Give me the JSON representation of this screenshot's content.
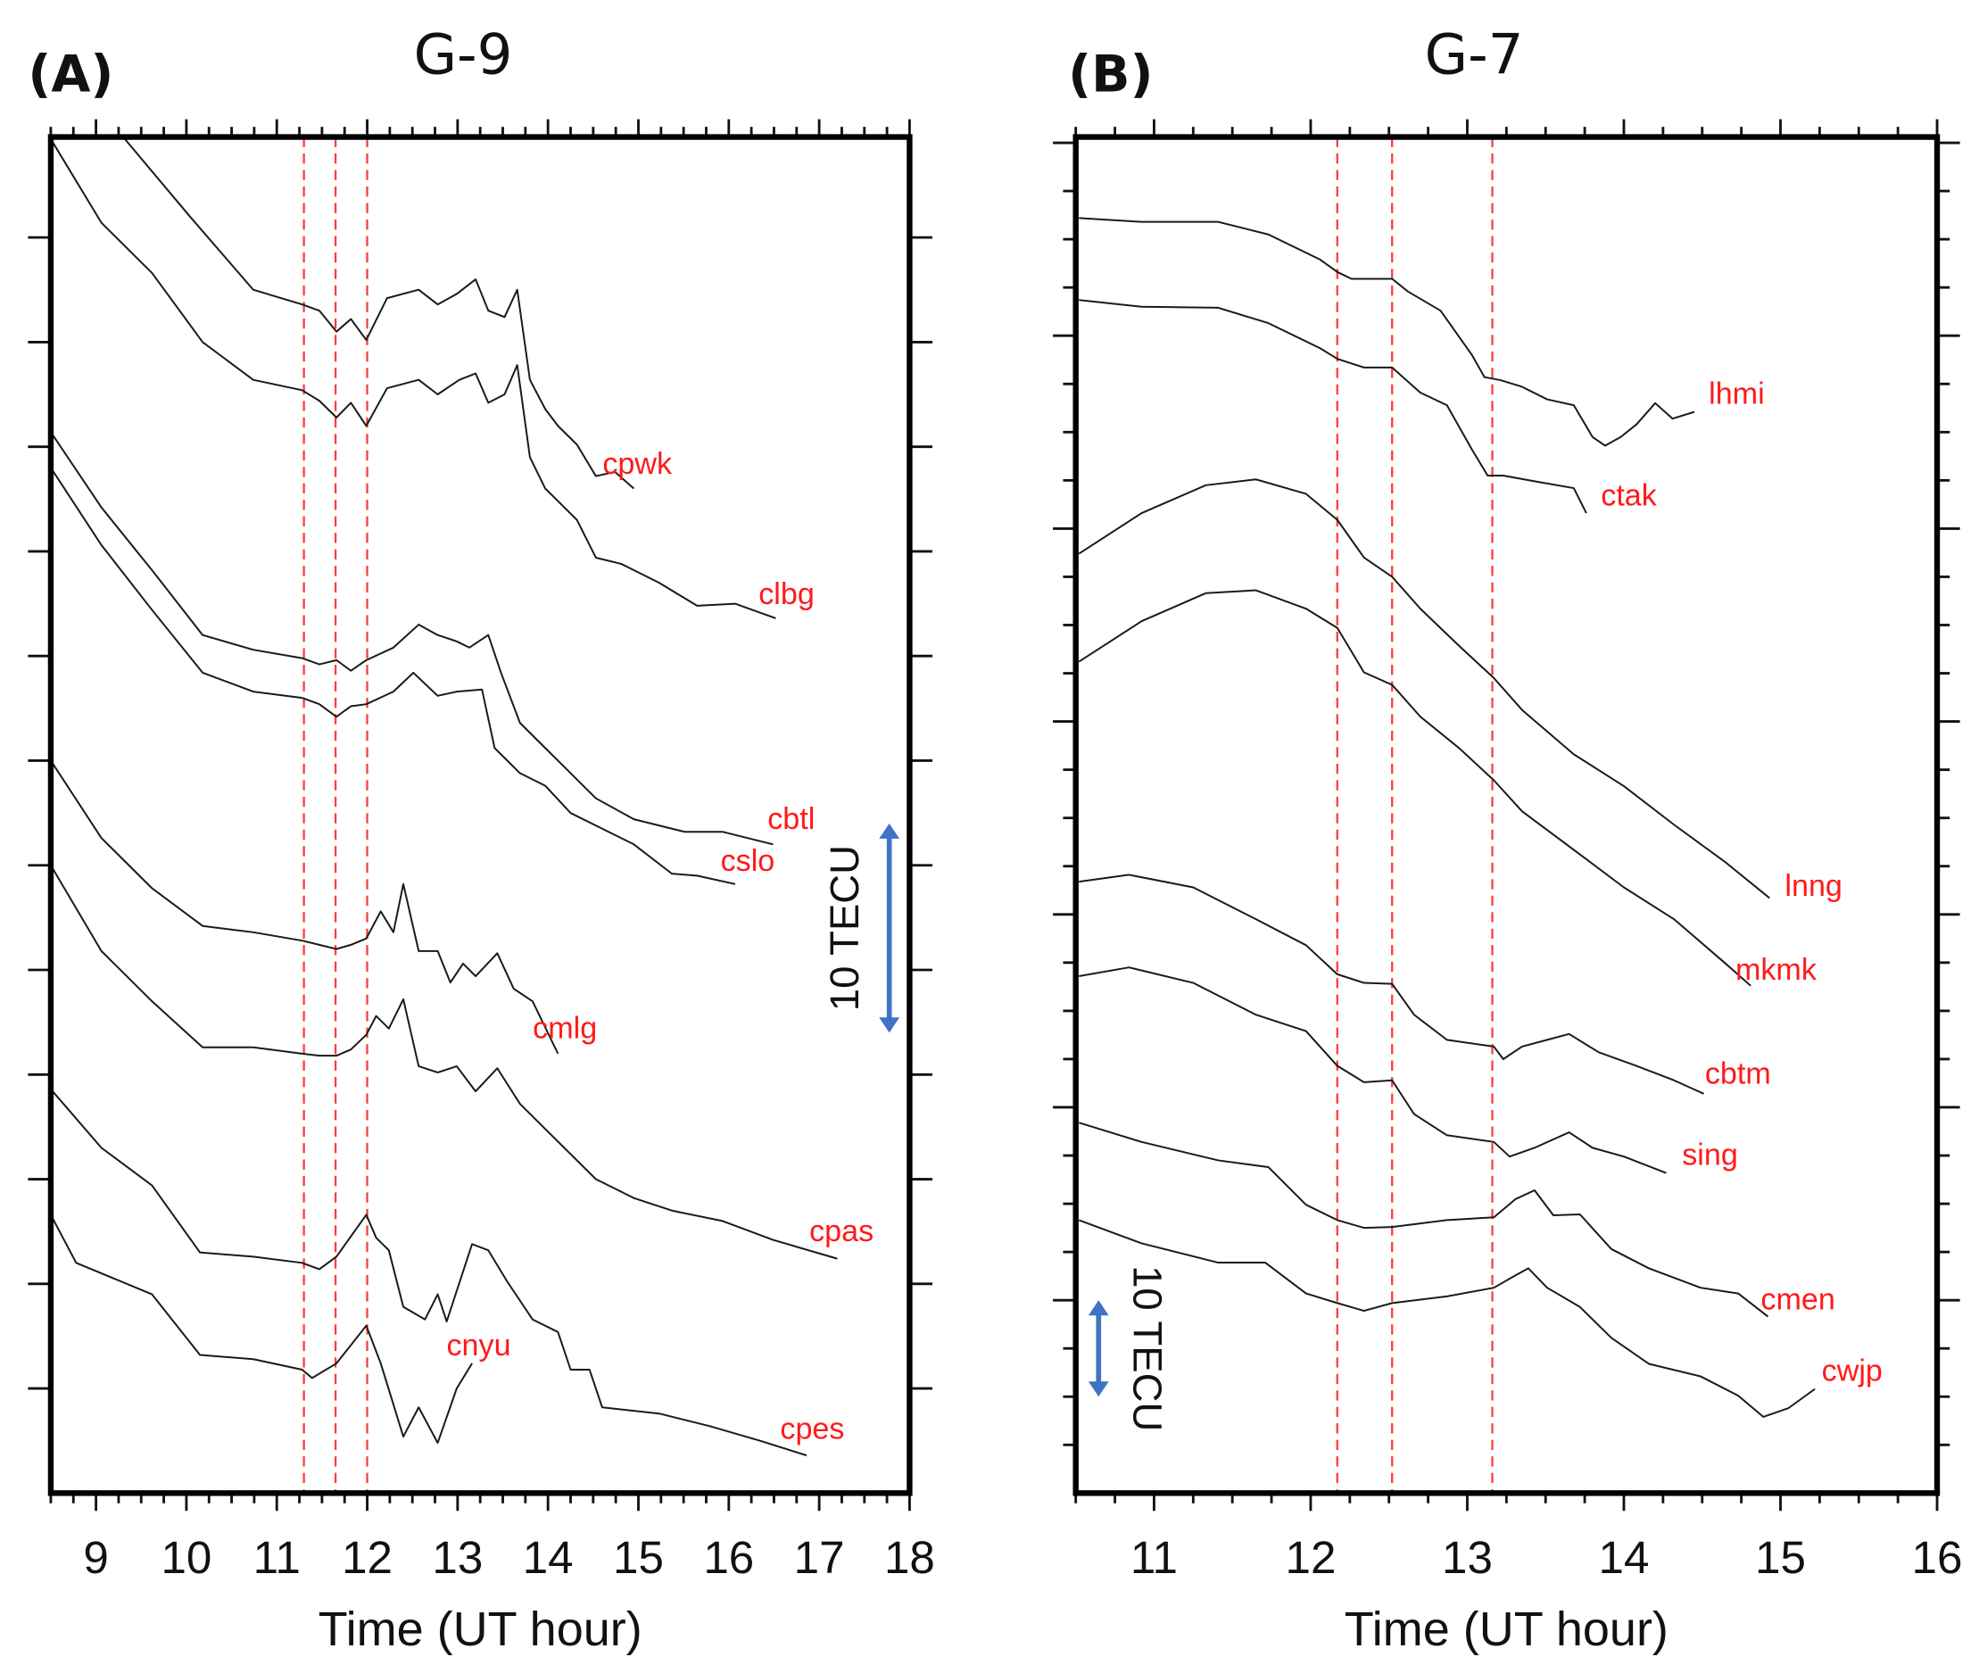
{
  "chart_data": [
    {
      "type": "line",
      "panel_label": "(A)",
      "title": "G-9",
      "xlabel": "Time (UT hour)",
      "ylabel": "",
      "xlim": [
        8.5,
        18
      ],
      "ylim": [
        0,
        64.8
      ],
      "xticks": [
        "9",
        "10",
        "11",
        "12",
        "13",
        "14",
        "15",
        "16",
        "17",
        "18"
      ],
      "xtick_values": [
        9,
        10,
        11,
        12,
        13,
        14,
        15,
        16,
        17,
        18
      ],
      "x_minor_step": 0.25,
      "y_tick_step": 5,
      "y_major_step": 5,
      "event_lines_x": [
        11.3,
        11.65,
        12.0
      ],
      "scale_bar": {
        "label": "10 TECU",
        "value": 10,
        "center": 27
      },
      "colors": {
        "series": "#1a1a1a",
        "labels": "#ff1a1a",
        "event_lines": "#ff3b3b",
        "scale_bar": "#3f73c4"
      },
      "series": [
        {
          "name": "cpwk",
          "x": [
            9.3,
            10.04,
            10.74,
            11.28,
            11.47,
            11.66,
            11.82,
            11.99,
            12.22,
            12.57,
            12.78,
            12.99,
            13.2,
            13.34,
            13.52,
            13.66,
            13.8,
            13.97,
            14.11,
            14.32,
            14.53,
            14.74,
            14.95
          ],
          "y": [
            64.8,
            61.0,
            57.5,
            56.8,
            56.5,
            55.5,
            56.1,
            55.1,
            57.1,
            57.5,
            56.8,
            57.3,
            58.0,
            56.5,
            56.2,
            57.5,
            53.2,
            51.8,
            51.0,
            50.1,
            48.6,
            48.8,
            48.0
          ]
        },
        {
          "name": "clbg",
          "x": [
            8.5,
            9.06,
            9.62,
            10.18,
            10.74,
            11.28,
            11.47,
            11.66,
            11.82,
            11.99,
            12.22,
            12.57,
            12.78,
            13.02,
            13.2,
            13.34,
            13.52,
            13.66,
            13.8,
            13.97,
            14.11,
            14.32,
            14.53,
            14.81,
            15.23,
            15.65,
            16.07,
            16.52
          ],
          "y": [
            64.7,
            60.7,
            58.3,
            55.0,
            53.2,
            52.7,
            52.2,
            51.4,
            52.1,
            51.0,
            52.8,
            53.2,
            52.5,
            53.2,
            53.5,
            52.1,
            52.5,
            53.9,
            49.5,
            48.0,
            47.4,
            46.5,
            44.7,
            44.4,
            43.5,
            42.4,
            42.5,
            41.8
          ]
        },
        {
          "name": "cbtl",
          "x": [
            8.5,
            9.06,
            9.62,
            10.18,
            10.74,
            11.28,
            11.47,
            11.66,
            11.82,
            11.99,
            12.29,
            12.57,
            12.78,
            12.99,
            13.13,
            13.34,
            13.48,
            13.69,
            13.97,
            14.25,
            14.53,
            14.95,
            15.51,
            15.93,
            16.49
          ],
          "y": [
            50.7,
            47.1,
            44.1,
            41.0,
            40.3,
            39.9,
            39.6,
            39.8,
            39.3,
            39.8,
            40.4,
            41.5,
            41.0,
            40.7,
            40.4,
            41.0,
            39.2,
            36.8,
            35.6,
            34.4,
            33.2,
            32.2,
            31.6,
            31.6,
            31.0
          ]
        },
        {
          "name": "cslo",
          "x": [
            8.5,
            9.06,
            9.62,
            10.18,
            10.74,
            11.28,
            11.47,
            11.66,
            11.82,
            11.99,
            12.29,
            12.51,
            12.78,
            12.99,
            13.27,
            13.41,
            13.69,
            13.97,
            14.25,
            14.67,
            14.95,
            15.37,
            15.65,
            16.07
          ],
          "y": [
            49.0,
            45.3,
            42.2,
            39.2,
            38.3,
            38.0,
            37.7,
            37.1,
            37.6,
            37.7,
            38.3,
            39.2,
            38.1,
            38.3,
            38.4,
            35.6,
            34.4,
            33.8,
            32.5,
            31.6,
            31.0,
            29.6,
            29.5,
            29.1
          ]
        },
        {
          "name": "cmlg",
          "x": [
            8.5,
            9.06,
            9.62,
            10.18,
            10.74,
            11.28,
            11.47,
            11.66,
            11.82,
            11.99,
            12.15,
            12.29,
            12.4,
            12.57,
            12.78,
            12.92,
            13.06,
            13.2,
            13.44,
            13.62,
            13.83,
            14.11
          ],
          "y": [
            35.0,
            31.3,
            28.9,
            27.1,
            26.8,
            26.4,
            26.2,
            26.0,
            26.2,
            26.5,
            27.8,
            26.8,
            29.1,
            25.9,
            25.9,
            24.4,
            25.3,
            24.7,
            25.8,
            24.1,
            23.5,
            21.0
          ]
        },
        {
          "name": "cpas",
          "x": [
            8.5,
            9.06,
            9.62,
            10.18,
            10.74,
            11.28,
            11.47,
            11.66,
            11.82,
            11.99,
            12.1,
            12.24,
            12.4,
            12.57,
            12.78,
            12.99,
            13.2,
            13.44,
            13.69,
            13.97,
            14.25,
            14.53,
            14.95,
            15.37,
            15.93,
            16.49,
            17.2
          ],
          "y": [
            30.0,
            25.9,
            23.5,
            21.3,
            21.3,
            21.0,
            20.9,
            20.9,
            21.2,
            21.9,
            22.8,
            22.2,
            23.6,
            20.4,
            20.1,
            20.4,
            19.2,
            20.3,
            18.6,
            17.4,
            16.2,
            15.0,
            14.1,
            13.5,
            13.0,
            12.1,
            11.2
          ]
        },
        {
          "name": "cnyu",
          "x": [
            8.5,
            8.78,
            9.62,
            10.15,
            10.74,
            11.28,
            11.39,
            11.66,
            11.99,
            12.15,
            12.4,
            12.57,
            12.78,
            12.99,
            13.16
          ],
          "y": [
            13.3,
            11.0,
            9.5,
            6.6,
            6.4,
            5.9,
            5.5,
            6.2,
            8.0,
            6.2,
            2.7,
            4.1,
            2.4,
            5.0,
            6.2
          ]
        },
        {
          "name": "cpes",
          "x": [
            8.5,
            9.06,
            9.62,
            10.15,
            10.74,
            11.28,
            11.47,
            11.66,
            11.99,
            12.1,
            12.24,
            12.4,
            12.64,
            12.78,
            12.88,
            13.16,
            13.34,
            13.55,
            13.83,
            14.11,
            14.25,
            14.46,
            14.6,
            15.23,
            15.79,
            16.35,
            16.86
          ],
          "y": [
            19.3,
            16.5,
            14.7,
            11.5,
            11.3,
            11.0,
            10.7,
            11.3,
            13.3,
            12.2,
            11.6,
            8.9,
            8.3,
            9.5,
            8.2,
            11.9,
            11.6,
            10.1,
            8.3,
            7.7,
            5.9,
            5.9,
            4.1,
            3.8,
            3.2,
            2.5,
            1.8
          ]
        }
      ]
    },
    {
      "type": "line",
      "panel_label": "(B)",
      "title": "G-7",
      "xlabel": "Time (UT hour)",
      "ylabel": "",
      "xlim": [
        10.5,
        16
      ],
      "ylim": [
        0,
        140.6
      ],
      "xticks": [
        "11",
        "12",
        "13",
        "14",
        "15",
        "16"
      ],
      "xtick_values": [
        11,
        12,
        13,
        14,
        15,
        16
      ],
      "x_minor_step": 0.25,
      "y_tick_step": 5,
      "y_major_step": 20,
      "event_lines_x": [
        12.17,
        12.52,
        13.16
      ],
      "scale_bar": {
        "label": "10 TECU",
        "value": 10,
        "center": 15
      },
      "colors": {
        "series": "#1a1a1a",
        "labels": "#ff1a1a",
        "event_lines": "#ff3b3b",
        "scale_bar": "#3f73c4"
      },
      "series": [
        {
          "name": "lhmi",
          "x": [
            10.52,
            10.92,
            11.41,
            11.73,
            12.06,
            12.17,
            12.26,
            12.52,
            12.62,
            12.83,
            13.03,
            13.11,
            13.21,
            13.35,
            13.51,
            13.68,
            13.8,
            13.88,
            13.98,
            14.08,
            14.2,
            14.31,
            14.45
          ],
          "y": [
            132.2,
            131.8,
            131.8,
            130.5,
            127.9,
            126.6,
            125.9,
            125.9,
            124.6,
            122.6,
            118.0,
            115.7,
            115.4,
            114.7,
            113.4,
            112.8,
            109.5,
            108.6,
            109.5,
            110.8,
            113.0,
            111.4,
            112.1
          ]
        },
        {
          "name": "ctak",
          "x": [
            10.52,
            10.92,
            11.41,
            11.73,
            12.06,
            12.17,
            12.34,
            12.52,
            12.7,
            12.87,
            13.03,
            13.13,
            13.23,
            13.43,
            13.68,
            13.76
          ],
          "y": [
            123.7,
            123.0,
            122.9,
            121.3,
            118.7,
            117.6,
            116.7,
            116.7,
            114.1,
            112.8,
            108.2,
            105.5,
            105.5,
            104.9,
            104.2,
            101.6
          ]
        },
        {
          "name": "lnng",
          "x": [
            10.52,
            10.92,
            11.33,
            11.65,
            11.97,
            12.17,
            12.34,
            12.52,
            12.7,
            12.95,
            13.17,
            13.35,
            13.68,
            14.0,
            14.32,
            14.65,
            14.93
          ],
          "y": [
            97.4,
            101.6,
            104.5,
            105.1,
            103.6,
            100.9,
            97.0,
            95.0,
            91.7,
            87.8,
            84.5,
            81.2,
            76.6,
            73.3,
            69.3,
            65.4,
            61.7
          ]
        },
        {
          "name": "mkmk",
          "x": [
            10.52,
            10.92,
            11.33,
            11.65,
            11.97,
            12.17,
            12.34,
            12.52,
            12.7,
            12.95,
            13.17,
            13.35,
            13.68,
            14.0,
            14.32,
            14.65,
            14.81
          ],
          "y": [
            86.2,
            90.4,
            93.3,
            93.6,
            91.7,
            89.7,
            85.1,
            83.8,
            80.5,
            77.2,
            73.9,
            70.7,
            66.7,
            62.8,
            59.5,
            54.9,
            52.6
          ]
        },
        {
          "name": "cbtm",
          "x": [
            10.52,
            10.84,
            11.25,
            11.65,
            11.97,
            12.17,
            12.34,
            12.52,
            12.66,
            12.87,
            13.17,
            13.23,
            13.35,
            13.51,
            13.65,
            13.84,
            14.08,
            14.32,
            14.51
          ],
          "y": [
            63.4,
            64.1,
            62.8,
            59.5,
            56.8,
            53.8,
            52.9,
            52.8,
            49.6,
            47.0,
            46.3,
            45.0,
            46.3,
            47.0,
            47.6,
            45.7,
            44.3,
            42.8,
            41.4
          ]
        },
        {
          "name": "sing",
          "x": [
            10.52,
            10.84,
            11.25,
            11.65,
            11.97,
            12.17,
            12.34,
            12.52,
            12.66,
            12.87,
            13.17,
            13.27,
            13.43,
            13.65,
            13.8,
            14.0,
            14.27
          ],
          "y": [
            53.6,
            54.5,
            52.9,
            49.6,
            47.9,
            44.3,
            42.6,
            42.8,
            39.3,
            37.1,
            36.4,
            34.9,
            35.8,
            37.4,
            35.8,
            34.9,
            33.2
          ]
        },
        {
          "name": "cmen",
          "x": [
            10.52,
            10.92,
            11.41,
            11.73,
            11.97,
            12.17,
            12.34,
            12.52,
            12.87,
            13.17,
            13.31,
            13.43,
            13.55,
            13.72,
            13.92,
            14.16,
            14.49,
            14.73,
            14.92
          ],
          "y": [
            38.4,
            36.4,
            34.5,
            33.8,
            29.9,
            28.3,
            27.5,
            27.6,
            28.3,
            28.6,
            30.5,
            31.4,
            28.8,
            28.9,
            25.3,
            23.3,
            21.3,
            20.7,
            18.3
          ]
        },
        {
          "name": "cwjp",
          "x": [
            10.52,
            10.92,
            11.41,
            11.71,
            11.97,
            12.17,
            12.34,
            12.52,
            12.87,
            13.17,
            13.31,
            13.39,
            13.51,
            13.72,
            13.92,
            14.16,
            14.49,
            14.73,
            14.89,
            15.05,
            15.22
          ],
          "y": [
            28.3,
            25.9,
            23.9,
            23.9,
            20.7,
            19.7,
            18.9,
            19.7,
            20.4,
            21.3,
            22.6,
            23.3,
            21.3,
            19.3,
            16.1,
            13.4,
            12.1,
            10.1,
            7.9,
            8.8,
            10.8
          ]
        }
      ]
    }
  ]
}
